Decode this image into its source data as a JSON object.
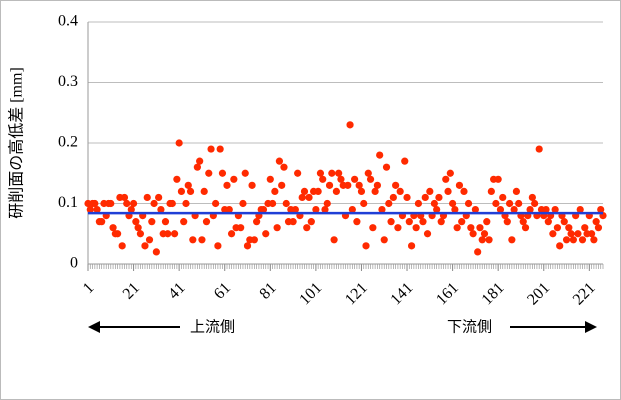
{
  "chart_data": {
    "type": "scatter",
    "y_label": "研削面の高低差 [mm]",
    "annotations": [
      "上流側",
      "下流側"
    ],
    "color": "#ff2a00",
    "reference_line": {
      "value": 0.084,
      "color": "#1f3fd6"
    },
    "grid": true,
    "xlim": [
      1,
      227
    ],
    "xticks": [
      1,
      21,
      41,
      61,
      81,
      101,
      121,
      141,
      161,
      181,
      201,
      221
    ],
    "ylim": [
      0,
      0.4
    ],
    "yticks": [
      0,
      0.1,
      0.2,
      0.3,
      0.4
    ],
    "x": [
      1,
      2,
      3,
      4,
      5,
      6,
      7,
      8,
      9,
      10,
      11,
      12,
      13,
      14,
      15,
      16,
      17,
      18,
      19,
      20,
      21,
      22,
      23,
      24,
      25,
      26,
      27,
      28,
      29,
      30,
      31,
      32,
      33,
      34,
      35,
      36,
      37,
      38,
      39,
      40,
      41,
      42,
      43,
      44,
      45,
      46,
      47,
      48,
      49,
      50,
      51,
      52,
      53,
      54,
      55,
      56,
      57,
      58,
      59,
      60,
      61,
      62,
      63,
      64,
      65,
      66,
      67,
      68,
      69,
      70,
      71,
      72,
      73,
      74,
      75,
      76,
      77,
      78,
      79,
      80,
      81,
      82,
      83,
      84,
      85,
      86,
      87,
      88,
      89,
      90,
      91,
      92,
      93,
      94,
      95,
      96,
      97,
      98,
      99,
      100,
      101,
      102,
      103,
      104,
      105,
      106,
      107,
      108,
      109,
      110,
      111,
      112,
      113,
      114,
      115,
      116,
      117,
      118,
      119,
      120,
      121,
      122,
      123,
      124,
      125,
      126,
      127,
      128,
      129,
      130,
      131,
      132,
      133,
      134,
      135,
      136,
      137,
      138,
      139,
      140,
      141,
      142,
      143,
      144,
      145,
      146,
      147,
      148,
      149,
      150,
      151,
      152,
      153,
      154,
      155,
      156,
      157,
      158,
      159,
      160,
      161,
      162,
      163,
      164,
      165,
      166,
      167,
      168,
      169,
      170,
      171,
      172,
      173,
      174,
      175,
      176,
      177,
      178,
      179,
      180,
      181,
      182,
      183,
      184,
      185,
      186,
      187,
      188,
      189,
      190,
      191,
      192,
      193,
      194,
      195,
      196,
      197,
      198,
      199,
      200,
      201,
      202,
      203,
      204,
      205,
      206,
      207,
      208,
      209,
      210,
      211,
      212,
      213,
      214,
      215,
      216,
      217,
      218,
      219,
      220,
      221,
      222,
      223,
      224,
      225,
      226,
      227
    ],
    "values": [
      0.1,
      0.09,
      0.1,
      0.1,
      0.09,
      0.07,
      0.07,
      0.1,
      0.08,
      0.1,
      0.1,
      0.06,
      0.05,
      0.05,
      0.11,
      0.03,
      0.11,
      0.1,
      0.08,
      0.09,
      0.1,
      0.07,
      0.06,
      0.05,
      0.08,
      0.03,
      0.11,
      0.04,
      0.07,
      0.1,
      0.02,
      0.11,
      0.09,
      0.05,
      0.07,
      0.05,
      0.1,
      0.1,
      0.05,
      0.14,
      0.2,
      0.12,
      0.07,
      0.1,
      0.13,
      0.12,
      0.04,
      0.08,
      0.16,
      0.17,
      0.04,
      0.12,
      0.07,
      0.15,
      0.19,
      0.08,
      0.1,
      0.03,
      0.19,
      0.15,
      0.09,
      0.13,
      0.09,
      0.05,
      0.14,
      0.06,
      0.08,
      0.06,
      0.1,
      0.15,
      0.03,
      0.04,
      0.13,
      0.04,
      0.07,
      0.08,
      0.09,
      0.09,
      0.05,
      0.1,
      0.14,
      0.1,
      0.12,
      0.06,
      0.17,
      0.13,
      0.16,
      0.1,
      0.07,
      0.09,
      0.07,
      0.09,
      0.15,
      0.08,
      0.11,
      0.12,
      0.06,
      0.11,
      0.07,
      0.12,
      0.09,
      0.12,
      0.15,
      0.14,
      0.09,
      0.1,
      0.13,
      0.15,
      0.04,
      0.12,
      0.15,
      0.14,
      0.13,
      0.08,
      0.13,
      0.23,
      0.09,
      0.14,
      0.07,
      0.13,
      0.12,
      0.1,
      0.03,
      0.15,
      0.14,
      0.06,
      0.12,
      0.13,
      0.18,
      0.09,
      0.04,
      0.16,
      0.1,
      0.07,
      0.11,
      0.13,
      0.06,
      0.12,
      0.08,
      0.17,
      0.11,
      0.07,
      0.03,
      0.08,
      0.06,
      0.1,
      0.08,
      0.07,
      0.11,
      0.05,
      0.12,
      0.08,
      0.1,
      0.09,
      0.11,
      0.07,
      0.08,
      0.14,
      0.12,
      0.15,
      0.1,
      0.09,
      0.06,
      0.13,
      0.07,
      0.12,
      0.08,
      0.1,
      0.06,
      0.05,
      0.09,
      0.02,
      0.06,
      0.04,
      0.05,
      0.07,
      0.04,
      0.12,
      0.14,
      0.1,
      0.14,
      0.09,
      0.11,
      0.08,
      0.07,
      0.1,
      0.04,
      0.09,
      0.12,
      0.1,
      0.08,
      0.07,
      0.06,
      0.08,
      0.09,
      0.11,
      0.1,
      0.08,
      0.19,
      0.09,
      0.08,
      0.09,
      0.07,
      0.08,
      0.05,
      0.09,
      0.06,
      0.03,
      0.08,
      0.07,
      0.04,
      0.06,
      0.05,
      0.04,
      0.08,
      0.05,
      0.09,
      0.04,
      0.06,
      0.05,
      0.08,
      0.05,
      0.04,
      0.07,
      0.06,
      0.09,
      0.08
    ]
  }
}
